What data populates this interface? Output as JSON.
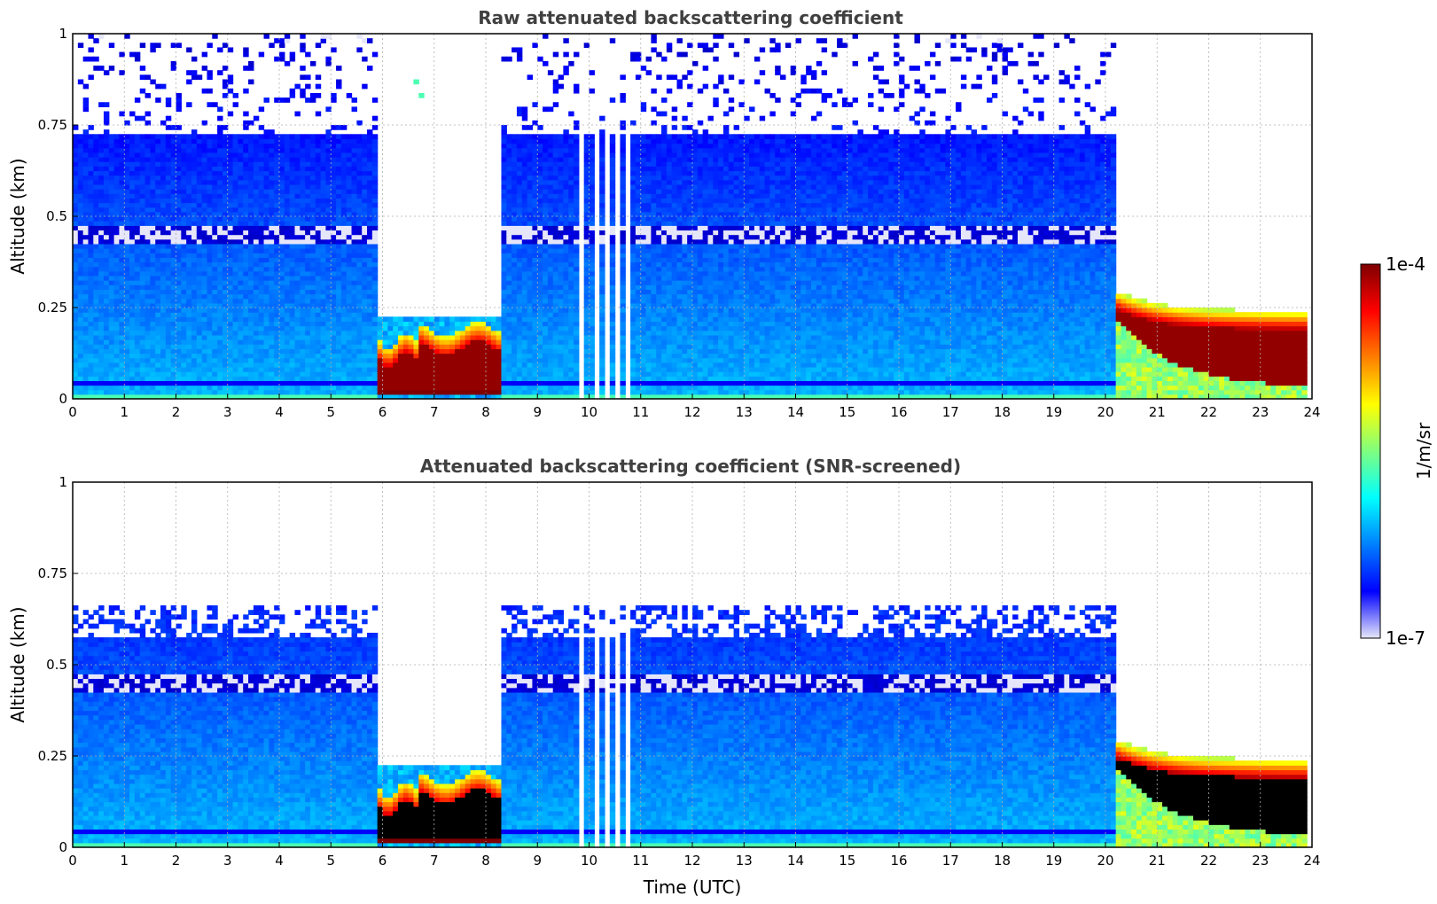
{
  "colors": {
    "jet": [
      "#00007f",
      "#0000ff",
      "#007fff",
      "#00ffff",
      "#7fff7f",
      "#ffff00",
      "#ff7f00",
      "#ff0000",
      "#7f0000"
    ],
    "low_tint": "#e6e6fa",
    "screened_saturated": "#000000",
    "title": "#404040"
  },
  "chart_data": [
    {
      "type": "heatmap",
      "title": "Raw attenuated backscattering coefficient",
      "xlabel": "",
      "ylabel": "Altitude (km)",
      "xlim": [
        0,
        24
      ],
      "ylim": [
        0,
        1
      ],
      "x_ticks": [
        "0",
        "1",
        "2",
        "3",
        "4",
        "5",
        "6",
        "7",
        "8",
        "9",
        "10",
        "11",
        "12",
        "13",
        "14",
        "15",
        "16",
        "17",
        "18",
        "19",
        "20",
        "21",
        "22",
        "23",
        "24"
      ],
      "y_ticks": [
        "0",
        "0.25",
        "0.5",
        "0.75",
        "1"
      ],
      "grid": true,
      "colormap": "jet",
      "colorbar_range": [
        "1e-7",
        "1e-4"
      ],
      "colorbar_unit": "1/m/sr"
    },
    {
      "type": "heatmap",
      "title": "Attenuated backscattering coefficient (SNR-screened)",
      "xlabel": "Time (UTC)",
      "ylabel": "Altitude (km)",
      "xlim": [
        0,
        24
      ],
      "ylim": [
        0,
        1
      ],
      "x_ticks": [
        "0",
        "1",
        "2",
        "3",
        "4",
        "5",
        "6",
        "7",
        "8",
        "9",
        "10",
        "11",
        "12",
        "13",
        "14",
        "15",
        "16",
        "17",
        "18",
        "19",
        "20",
        "21",
        "22",
        "23",
        "24"
      ],
      "y_ticks": [
        "0",
        "0.25",
        "0.5",
        "0.75",
        "1"
      ],
      "grid": true,
      "colormap": "jet",
      "colorbar_range": [
        "1e-7",
        "1e-4"
      ],
      "colorbar_unit": "1/m/sr"
    }
  ],
  "colorbar": {
    "max_label": "1e-4",
    "min_label": "1e-7",
    "unit_label": "1/m/sr"
  }
}
